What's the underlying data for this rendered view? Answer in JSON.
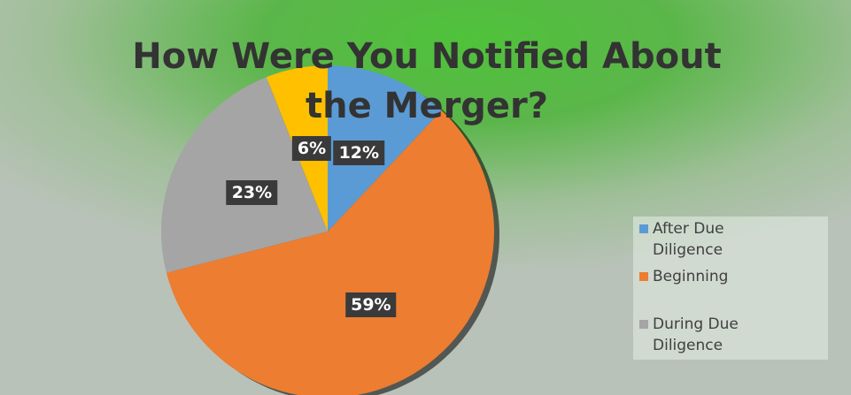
{
  "chart_data": {
    "type": "pie",
    "title": "How Were You Notified About the Merger?",
    "categories": [
      "After Due Diligence",
      "Beginning",
      "During Due Diligence",
      null
    ],
    "values": [
      12,
      59,
      23,
      6
    ],
    "value_labels": [
      "12%",
      "59%",
      "23%",
      "6%"
    ],
    "colors": [
      "#5b9bd5",
      "#ed7d31",
      "#a5a5a5",
      "#ffc000"
    ],
    "legend": "right"
  }
}
